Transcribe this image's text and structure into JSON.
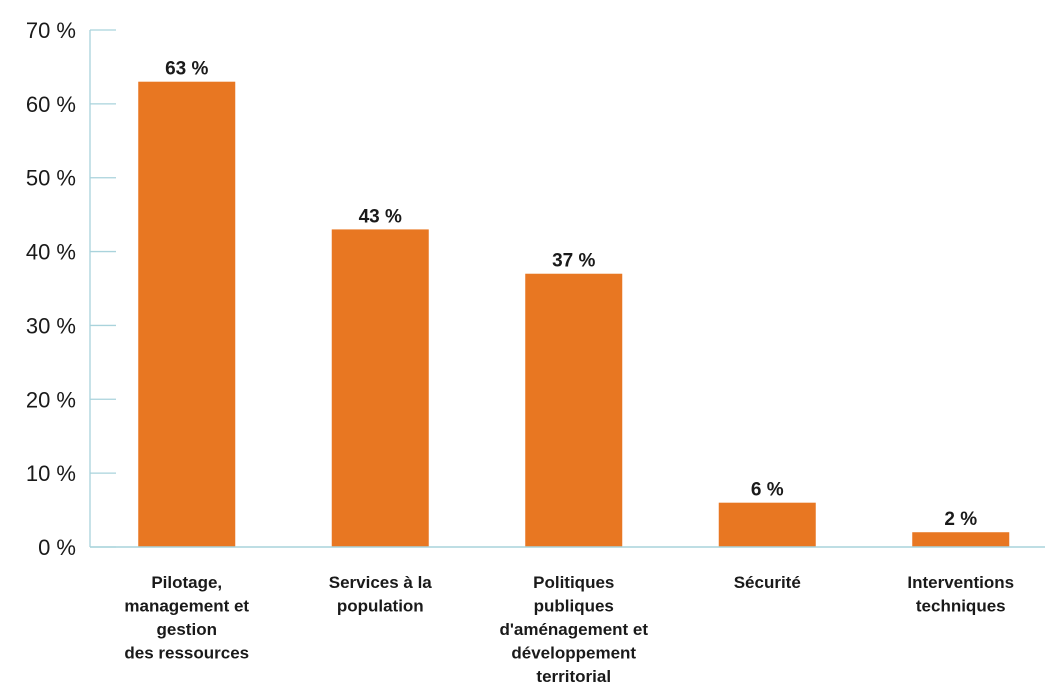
{
  "chart_data": {
    "type": "bar",
    "categories": [
      [
        "Pilotage,",
        "management et",
        "gestion",
        "des ressources"
      ],
      [
        "Services à la",
        "population"
      ],
      [
        "Politiques",
        "publiques",
        "d'aménagement et",
        "développement",
        "territorial"
      ],
      [
        "Sécurité"
      ],
      [
        "Interventions",
        "techniques"
      ]
    ],
    "values": [
      63,
      43,
      37,
      6,
      2
    ],
    "data_labels": [
      "63 %",
      "43 %",
      "37 %",
      "6 %",
      "2 %"
    ],
    "y_ticks": [
      "0 %",
      "10 %",
      "20 %",
      "30 %",
      "40 %",
      "50 %",
      "60 %",
      "70 %"
    ],
    "ylim": [
      0,
      70
    ],
    "grid": false,
    "colors": {
      "bar": "#e87722",
      "axis": "#a9d3dc",
      "text": "#1a1a1a"
    }
  }
}
